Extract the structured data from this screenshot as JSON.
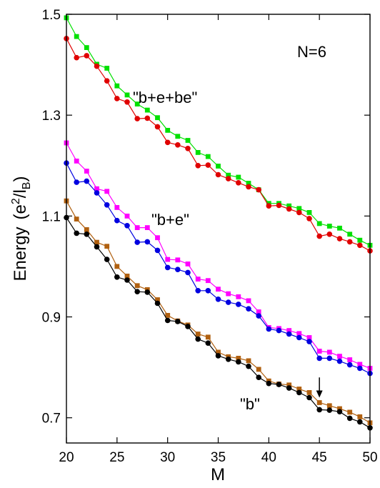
{
  "chart_data": {
    "type": "line",
    "xlabel": "M",
    "ylabel": "Energy",
    "ylabel_units": {
      "open": "(e",
      "sup": "2",
      "mid": "/l",
      "sub": "B",
      "close": ")"
    },
    "xlim": [
      20,
      50
    ],
    "ylim": [
      0.65,
      1.5
    ],
    "xticks": [
      20,
      25,
      30,
      35,
      40,
      45,
      50
    ],
    "yticks": [
      0.7,
      0.9,
      1.1,
      1.3,
      1.5
    ],
    "xtick_labels": [
      "20",
      "25",
      "30",
      "35",
      "40",
      "45",
      "50"
    ],
    "ytick_labels": [
      "0.7",
      "0.9",
      "1.1",
      "1.3",
      "1.5"
    ],
    "annotations": {
      "n_label": "N=6",
      "group_bebe": "\"b+e+be\"",
      "group_be": "\"b+e\"",
      "group_b": "\"b\""
    },
    "arrow": {
      "x": 45,
      "y_from": 0.78,
      "y_to": 0.74
    },
    "x": [
      20,
      21,
      22,
      23,
      24,
      25,
      26,
      27,
      28,
      29,
      30,
      31,
      32,
      33,
      34,
      35,
      36,
      37,
      38,
      39,
      40,
      41,
      42,
      43,
      44,
      45,
      46,
      47,
      48,
      49,
      50
    ],
    "series": [
      {
        "color": "#00e000",
        "marker": "square",
        "values": [
          1.493,
          1.456,
          1.434,
          1.401,
          1.393,
          1.358,
          1.34,
          1.322,
          1.31,
          1.295,
          1.27,
          1.258,
          1.25,
          1.226,
          1.218,
          1.199,
          1.181,
          1.177,
          1.165,
          1.152,
          1.125,
          1.125,
          1.12,
          1.115,
          1.107,
          1.085,
          1.08,
          1.076,
          1.064,
          1.052,
          1.042
        ]
      },
      {
        "color": "#e00000",
        "marker": "circle",
        "values": [
          1.452,
          1.414,
          1.418,
          1.397,
          1.368,
          1.333,
          1.326,
          1.293,
          1.294,
          1.277,
          1.246,
          1.241,
          1.234,
          1.2,
          1.201,
          1.182,
          1.174,
          1.166,
          1.158,
          1.152,
          1.12,
          1.121,
          1.114,
          1.107,
          1.095,
          1.06,
          1.064,
          1.055,
          1.049,
          1.042,
          1.031
        ]
      },
      {
        "color": "#ff00ff",
        "marker": "square",
        "values": [
          1.245,
          1.209,
          1.189,
          1.154,
          1.149,
          1.117,
          1.1,
          1.077,
          1.077,
          1.057,
          1.014,
          1.013,
          1.005,
          0.975,
          0.972,
          0.955,
          0.946,
          0.94,
          0.932,
          0.91,
          0.879,
          0.877,
          0.873,
          0.867,
          0.859,
          0.832,
          0.83,
          0.822,
          0.815,
          0.806,
          0.798
        ]
      },
      {
        "color": "#0000e0",
        "marker": "circle",
        "values": [
          1.205,
          1.167,
          1.169,
          1.146,
          1.122,
          1.091,
          1.081,
          1.048,
          1.049,
          1.032,
          0.998,
          0.994,
          0.988,
          0.952,
          0.952,
          0.935,
          0.929,
          0.925,
          0.916,
          0.902,
          0.876,
          0.873,
          0.866,
          0.859,
          0.851,
          0.818,
          0.818,
          0.812,
          0.805,
          0.798,
          0.788
        ]
      },
      {
        "color": "#b06010",
        "marker": "square",
        "values": [
          1.13,
          1.094,
          1.073,
          1.048,
          1.04,
          1.0,
          0.981,
          0.962,
          0.954,
          0.934,
          0.903,
          0.892,
          0.884,
          0.866,
          0.86,
          0.83,
          0.821,
          0.818,
          0.813,
          0.796,
          0.773,
          0.767,
          0.765,
          0.757,
          0.75,
          0.73,
          0.724,
          0.718,
          0.711,
          0.702,
          0.69
        ]
      },
      {
        "color": "#000000",
        "marker": "circle",
        "values": [
          1.097,
          1.066,
          1.064,
          1.039,
          1.014,
          0.979,
          0.973,
          0.95,
          0.949,
          0.927,
          0.893,
          0.891,
          0.881,
          0.856,
          0.848,
          0.823,
          0.816,
          0.811,
          0.802,
          0.78,
          0.768,
          0.766,
          0.759,
          0.75,
          0.74,
          0.716,
          0.715,
          0.712,
          0.699,
          0.692,
          0.68
        ]
      }
    ]
  }
}
